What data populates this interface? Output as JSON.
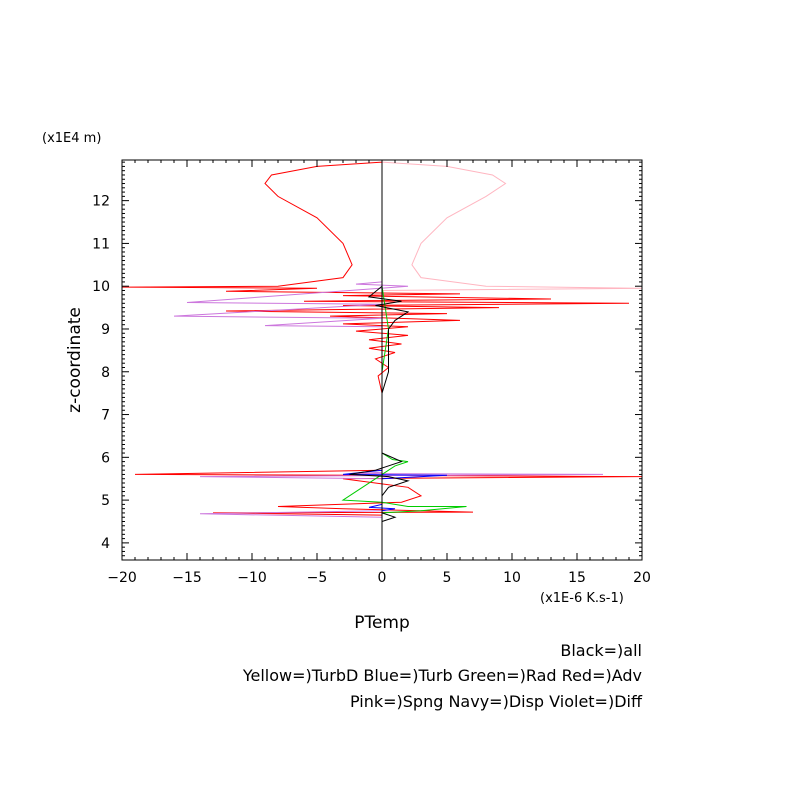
{
  "chart_data": {
    "type": "line",
    "xlabel": "PTemp",
    "ylabel": "z-coordinate",
    "x_units": "(x1E-6 K.s-1)",
    "y_units": "(x1E4 m)",
    "xlim": [
      -20,
      20
    ],
    "ylim": [
      3.6,
      12.95
    ],
    "x_ticks": [
      "−20",
      "−15",
      "−10",
      "−5",
      "0",
      "5",
      "10",
      "15",
      "20"
    ],
    "y_ticks": [
      "4",
      "5",
      "6",
      "7",
      "8",
      "9",
      "10",
      "11",
      "12"
    ],
    "legend": [
      "Black=)all",
      "Yellow=)TurbD Blue=)Turb Green=)Rad Red=)Adv",
      "Pink=)Spng Navy=)Disp Violet=)Diff"
    ],
    "colors": {
      "all": "#000000",
      "turbd": "#ffd700",
      "turb": "#0000ff",
      "rad": "#00cc00",
      "adv": "#ff0000",
      "spng": "#ffb6c1",
      "disp": "#000080",
      "diff": "#cc77dd"
    },
    "series": [
      {
        "key": "adv",
        "color": "#ff0000",
        "points": [
          [
            0,
            12.9
          ],
          [
            -5,
            12.8
          ],
          [
            -8.5,
            12.6
          ],
          [
            -9,
            12.4
          ],
          [
            -8,
            12.1
          ],
          [
            -5,
            11.6
          ],
          [
            -3,
            11.0
          ],
          [
            -2.3,
            10.5
          ],
          [
            -3,
            10.2
          ],
          [
            -8,
            10.0
          ],
          [
            -20,
            9.98
          ],
          [
            -5,
            9.95
          ],
          [
            -12,
            9.88
          ],
          [
            6,
            9.82
          ],
          [
            -3,
            9.78
          ],
          [
            13,
            9.7
          ],
          [
            -6,
            9.65
          ],
          [
            19,
            9.6
          ],
          [
            -3,
            9.55
          ],
          [
            9,
            9.5
          ],
          [
            -12,
            9.42
          ],
          [
            5,
            9.36
          ],
          [
            -4,
            9.3
          ],
          [
            6,
            9.2
          ],
          [
            -3,
            9.12
          ],
          [
            2,
            9.05
          ],
          [
            -2,
            8.95
          ],
          [
            2,
            8.85
          ],
          [
            -1,
            8.75
          ],
          [
            1.5,
            8.65
          ],
          [
            -1,
            8.55
          ],
          [
            1,
            8.45
          ],
          [
            -0.5,
            8.3
          ],
          [
            0.5,
            8.1
          ],
          [
            -0.3,
            7.9
          ],
          [
            0,
            7.5
          ],
          [
            0,
            6.5
          ],
          [
            0,
            5.7
          ],
          [
            -19,
            5.6
          ],
          [
            -2,
            5.58
          ],
          [
            20,
            5.55
          ],
          [
            -3,
            5.5
          ],
          [
            2,
            5.3
          ],
          [
            3,
            5.1
          ],
          [
            1.5,
            4.95
          ],
          [
            -8,
            4.85
          ],
          [
            -3,
            4.8
          ],
          [
            7,
            4.72
          ],
          [
            -13,
            4.7
          ],
          [
            0,
            4.65
          ],
          [
            0,
            4.0
          ]
        ]
      },
      {
        "key": "spng",
        "color": "#ffb6c1",
        "points": [
          [
            0,
            12.9
          ],
          [
            5,
            12.8
          ],
          [
            8.5,
            12.6
          ],
          [
            9.5,
            12.4
          ],
          [
            8,
            12.1
          ],
          [
            5,
            11.6
          ],
          [
            3,
            11.0
          ],
          [
            2.3,
            10.5
          ],
          [
            3,
            10.2
          ],
          [
            8,
            10.0
          ],
          [
            20,
            9.95
          ],
          [
            0,
            9.9
          ],
          [
            0,
            4.0
          ]
        ]
      },
      {
        "key": "diff",
        "color": "#cc77dd",
        "points": [
          [
            0,
            10.1
          ],
          [
            -2,
            10.05
          ],
          [
            2,
            10.0
          ],
          [
            -15,
            9.62
          ],
          [
            0,
            9.58
          ],
          [
            -16,
            9.3
          ],
          [
            0,
            9.25
          ],
          [
            -9,
            9.08
          ],
          [
            0,
            9.05
          ],
          [
            0,
            5.65
          ],
          [
            -2,
            5.62
          ],
          [
            17,
            5.6
          ],
          [
            -14,
            5.55
          ],
          [
            0,
            5.5
          ],
          [
            0,
            4.75
          ],
          [
            -14,
            4.68
          ],
          [
            0,
            4.6
          ],
          [
            0,
            4.0
          ]
        ]
      },
      {
        "key": "rad",
        "color": "#00cc00",
        "points": [
          [
            0,
            10.0
          ],
          [
            0.5,
            9.0
          ],
          [
            0,
            8.0
          ],
          [
            0,
            6.1
          ],
          [
            0.8,
            5.95
          ],
          [
            2,
            5.9
          ],
          [
            1,
            5.8
          ],
          [
            -2,
            5.2
          ],
          [
            -3,
            5.0
          ],
          [
            0,
            4.95
          ],
          [
            2,
            4.85
          ],
          [
            6.5,
            4.85
          ],
          [
            3,
            4.75
          ],
          [
            0,
            4.7
          ],
          [
            0,
            4.0
          ]
        ]
      },
      {
        "key": "turb",
        "color": "#0000ff",
        "points": [
          [
            0,
            5.7
          ],
          [
            -3,
            5.6
          ],
          [
            5,
            5.58
          ],
          [
            0,
            5.5
          ],
          [
            0,
            4.9
          ],
          [
            -1,
            4.83
          ],
          [
            1,
            4.8
          ],
          [
            0,
            4.75
          ],
          [
            0,
            4.0
          ]
        ]
      },
      {
        "key": "all",
        "color": "#000000",
        "points": [
          [
            0,
            12.9
          ],
          [
            0,
            10.0
          ],
          [
            -1,
            9.75
          ],
          [
            1.5,
            9.65
          ],
          [
            -0.5,
            9.55
          ],
          [
            2,
            9.4
          ],
          [
            1,
            9.2
          ],
          [
            0.5,
            9.0
          ],
          [
            0.5,
            8.0
          ],
          [
            0,
            7.5
          ],
          [
            0,
            6.1
          ],
          [
            1.5,
            5.9
          ],
          [
            -0.5,
            5.7
          ],
          [
            -2.5,
            5.6
          ],
          [
            0.5,
            5.55
          ],
          [
            2,
            5.45
          ],
          [
            0.5,
            5.3
          ],
          [
            0,
            5.1
          ],
          [
            0,
            4.7
          ],
          [
            1,
            4.6
          ],
          [
            0,
            4.5
          ],
          [
            0,
            4.0
          ]
        ]
      }
    ]
  }
}
